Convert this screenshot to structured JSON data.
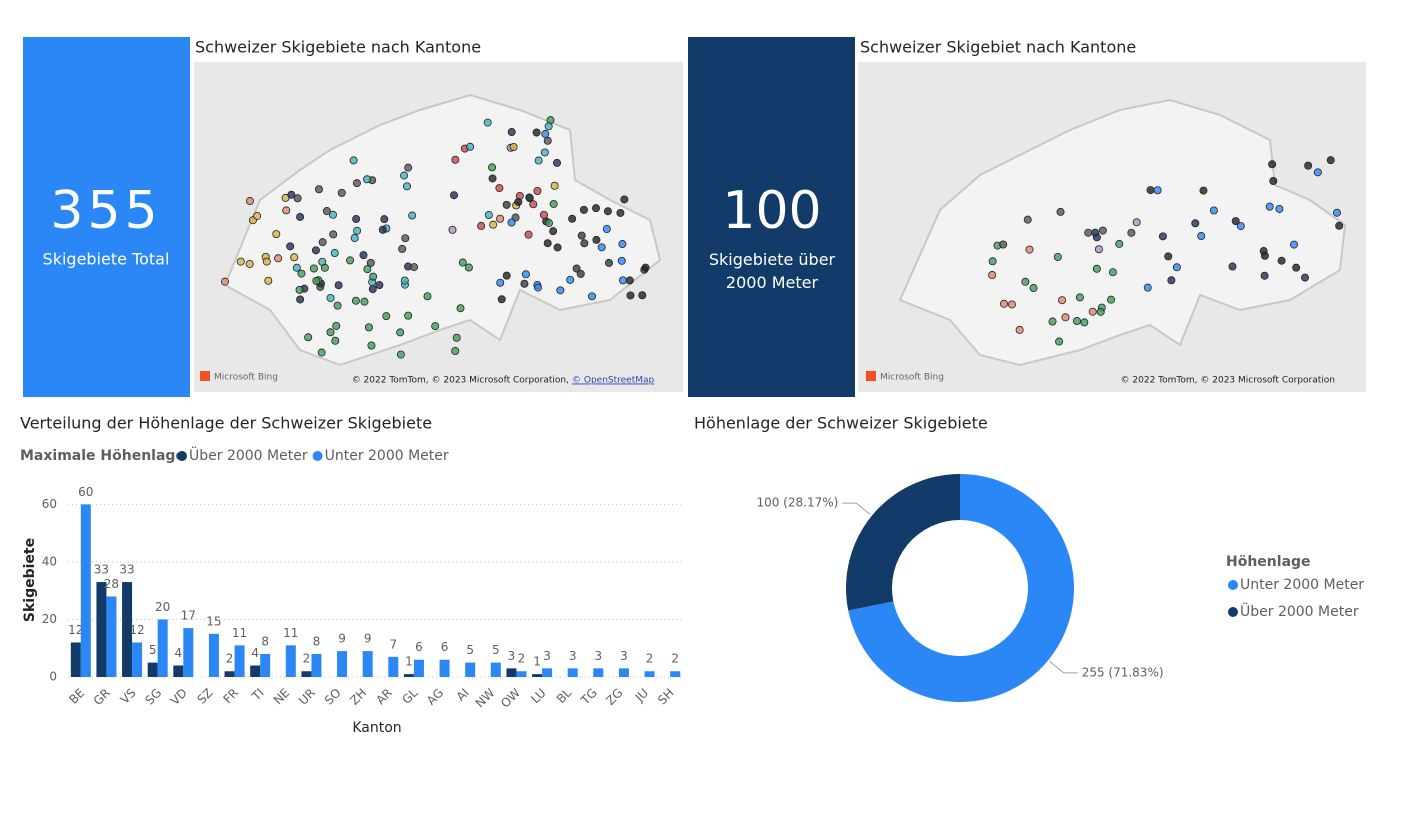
{
  "cards": [
    {
      "value": 355,
      "label": "Skigebiete Total",
      "color": "#2a87f5"
    },
    {
      "value": 100,
      "label": "Skigebiete über 2000 Meter",
      "color": "#123b69"
    }
  ],
  "maps": [
    {
      "title": "Schweizer Skigebiete nach Kantone",
      "logo": "Microsoft Bing",
      "attribution": "© 2022 TomTom, © 2023 Microsoft Corporation,",
      "link": "© OpenStreetMap"
    },
    {
      "title": "Schweizer Skigebiet nach Kantone",
      "logo": "Microsoft Bing",
      "attribution": "© 2022 TomTom, © 2023 Microsoft Corporation"
    }
  ],
  "chart_data": [
    {
      "type": "bar",
      "title": "Verteilung der Höhenlage der Schweizer Skigebiete",
      "legend_title": "Maximale Höhenlage",
      "x_label": "Kanton",
      "y_label": "Skigebiete",
      "categories": [
        "BE",
        "GR",
        "VS",
        "SG",
        "VD",
        "SZ",
        "FR",
        "TI",
        "NE",
        "UR",
        "SO",
        "ZH",
        "AR",
        "GL",
        "AG",
        "AI",
        "NW",
        "OW",
        "LU",
        "BL",
        "TG",
        "ZG",
        "JU",
        "SH"
      ],
      "series": [
        {
          "name": "Über 2000 Meter",
          "color": "#123b69",
          "values": [
            12,
            33,
            33,
            5,
            4,
            null,
            2,
            4,
            null,
            2,
            null,
            null,
            null,
            1,
            null,
            null,
            null,
            3,
            1,
            null,
            null,
            null,
            null,
            null
          ]
        },
        {
          "name": "Unter 2000 Meter",
          "color": "#2a87f5",
          "values": [
            60,
            28,
            12,
            20,
            17,
            15,
            11,
            8,
            11,
            8,
            9,
            9,
            7,
            6,
            6,
            5,
            5,
            2,
            3,
            3,
            3,
            3,
            2,
            2
          ]
        }
      ],
      "ylim": [
        0,
        65
      ],
      "yticks": [
        0,
        20,
        40,
        60
      ],
      "grid": true
    },
    {
      "type": "pie",
      "title": "Höhenlage der Schweizer Skigebiete",
      "legend_title": "Höhenlage",
      "categories": [
        "Unter 2000 Meter",
        "Über 2000 Meter"
      ],
      "values": [
        255,
        100
      ],
      "value_labels": [
        "255 (71.83%)",
        "100 (28.17%)"
      ],
      "colors": [
        "#2a87f5",
        "#123b69"
      ]
    }
  ]
}
